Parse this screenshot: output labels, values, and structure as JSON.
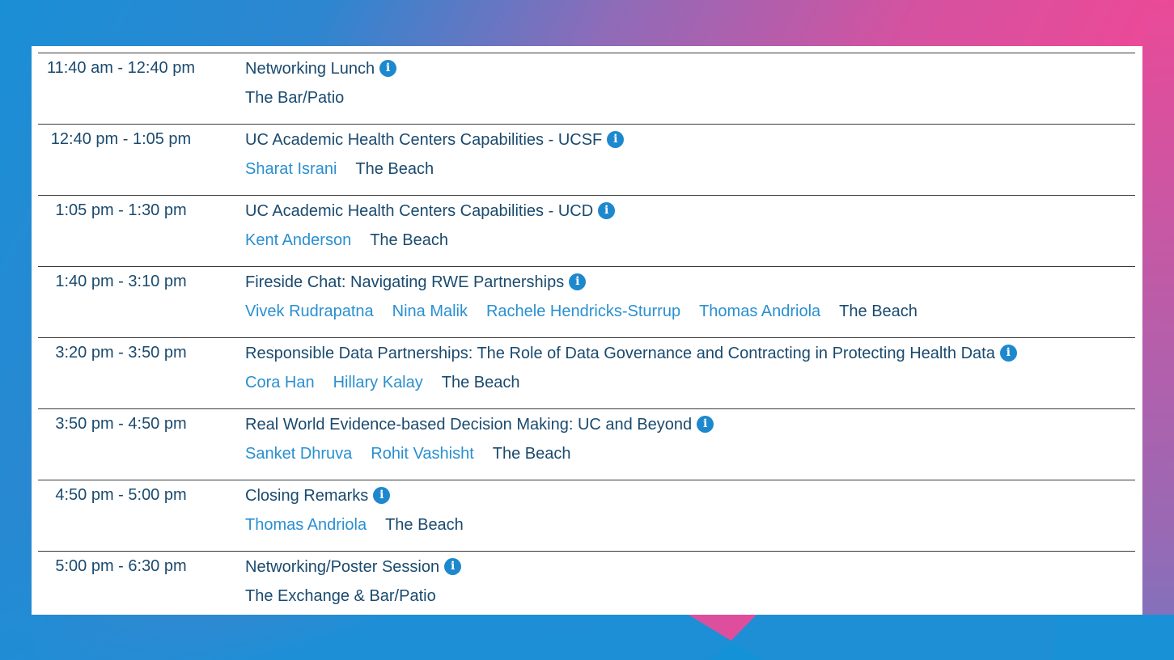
{
  "sessions": [
    {
      "time": "11:40 am - 12:40 pm",
      "title": "Networking Lunch",
      "speakers": [],
      "location": "The Bar/Patio"
    },
    {
      "time": "12:40 pm - 1:05 pm",
      "title": "UC Academic Health Centers Capabilities - UCSF",
      "speakers": [
        "Sharat Israni"
      ],
      "location": "The Beach"
    },
    {
      "time": "1:05 pm - 1:30 pm",
      "title": "UC Academic Health Centers Capabilities - UCD",
      "speakers": [
        "Kent Anderson"
      ],
      "location": "The Beach"
    },
    {
      "time": "1:40 pm - 3:10 pm",
      "title": "Fireside Chat: Navigating RWE Partnerships",
      "speakers": [
        "Vivek Rudrapatna",
        "Nina Malik",
        "Rachele Hendricks-Sturrup",
        "Thomas Andriola"
      ],
      "location": "The Beach"
    },
    {
      "time": "3:20 pm - 3:50 pm",
      "title": "Responsible Data Partnerships: The Role of Data Governance and Contracting in Protecting Health Data",
      "speakers": [
        "Cora Han",
        "Hillary Kalay"
      ],
      "location": "The Beach"
    },
    {
      "time": "3:50 pm - 4:50 pm",
      "title": "Real World Evidence-based Decision Making: UC and Beyond",
      "speakers": [
        "Sanket Dhruva",
        "Rohit Vashisht"
      ],
      "location": "The Beach"
    },
    {
      "time": "4:50 pm - 5:00 pm",
      "title": "Closing Remarks",
      "speakers": [
        "Thomas Andriola"
      ],
      "location": "The Beach"
    },
    {
      "time": "5:00 pm - 6:30 pm",
      "title": "Networking/Poster Session",
      "speakers": [],
      "location": "The Exchange & Bar/Patio"
    }
  ],
  "icons": {
    "info": "info-circle-icon",
    "info_glyph": "i",
    "info_color": "#1e88cf"
  },
  "colors": {
    "time_text": "#1a4a6e",
    "speaker_link": "#2a8fd0",
    "location_text": "#1a4a6e"
  }
}
